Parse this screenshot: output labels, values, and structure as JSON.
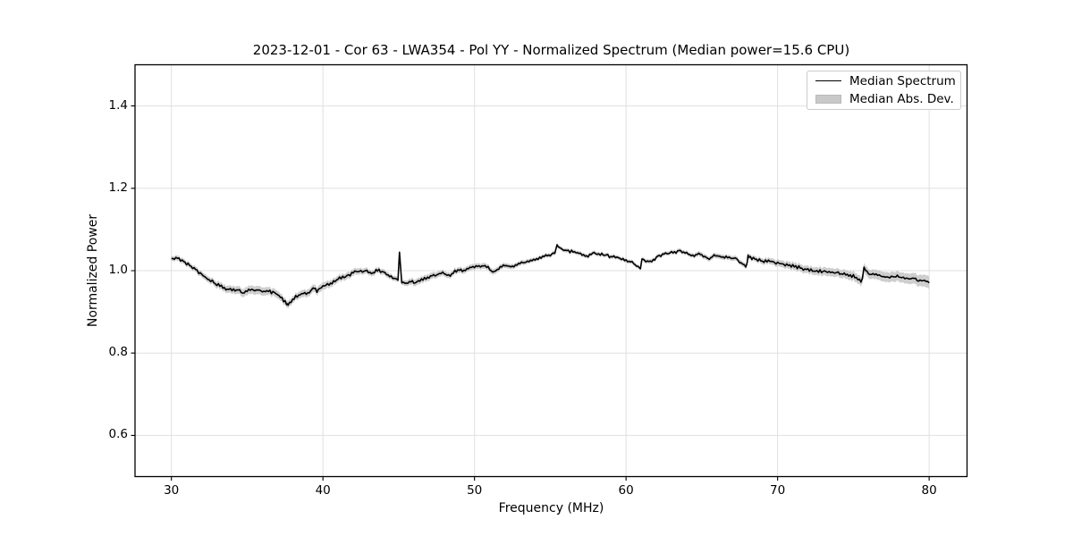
{
  "figure": {
    "title": "2023-12-01 - Cor 63 - LWA354 - Pol YY - Normalized Spectrum (Median power=15.6 CPU)",
    "xlabel": "Frequency (MHz)",
    "ylabel": "Normalized Power"
  },
  "legend": {
    "position": "upper right",
    "items": [
      {
        "label": "Median Spectrum",
        "type": "line",
        "color": "#000000"
      },
      {
        "label": "Median Abs. Dev.",
        "type": "patch",
        "color": "#c9c9c9"
      }
    ]
  },
  "colors": {
    "background": "#ffffff",
    "line": "#000000",
    "band": "#c9c9c9",
    "grid": "#e0e0e0",
    "spine": "#000000"
  },
  "chart_data": {
    "type": "line",
    "title": "2023-12-01 - Cor 63 - LWA354 - Pol YY - Normalized Spectrum (Median power=15.6 CPU)",
    "xlabel": "Frequency (MHz)",
    "ylabel": "Normalized Power",
    "xlim": [
      27.6,
      82.5
    ],
    "ylim": [
      0.5,
      1.5
    ],
    "xticks": [
      30,
      40,
      50,
      60,
      70,
      80
    ],
    "yticks": [
      0.6,
      0.8,
      1.0,
      1.2,
      1.4
    ],
    "xtick_labels": [
      "30",
      "40",
      "50",
      "60",
      "70",
      "80"
    ],
    "ytick_labels": [
      "0.6",
      "0.8",
      "1.0",
      "1.2",
      "1.4"
    ],
    "grid": true,
    "legend_position": "upper right",
    "series": [
      {
        "name": "Median Spectrum",
        "style": "line",
        "color": "#000000",
        "keypoints": [
          [
            30,
            1.03
          ],
          [
            30.2,
            1.027
          ],
          [
            30.4,
            1.033
          ],
          [
            30.6,
            1.026
          ],
          [
            30.8,
            1.022
          ],
          [
            31,
            1.017
          ],
          [
            31.5,
            1.006
          ],
          [
            32,
            0.991
          ],
          [
            32.5,
            0.979
          ],
          [
            33,
            0.967
          ],
          [
            33.5,
            0.958
          ],
          [
            34,
            0.954
          ],
          [
            34.4,
            0.953
          ],
          [
            34.7,
            0.946
          ],
          [
            35,
            0.953
          ],
          [
            35.5,
            0.952
          ],
          [
            36,
            0.952
          ],
          [
            36.4,
            0.95
          ],
          [
            36.8,
            0.946
          ],
          [
            37.1,
            0.94
          ],
          [
            37.4,
            0.928
          ],
          [
            37.65,
            0.916
          ],
          [
            37.9,
            0.925
          ],
          [
            38.2,
            0.937
          ],
          [
            38.6,
            0.942
          ],
          [
            39,
            0.945
          ],
          [
            39.35,
            0.958
          ],
          [
            39.6,
            0.951
          ],
          [
            40,
            0.962
          ],
          [
            40.5,
            0.969
          ],
          [
            41,
            0.98
          ],
          [
            41.5,
            0.986
          ],
          [
            42,
            0.995
          ],
          [
            42.4,
            0.999
          ],
          [
            42.8,
            1.0
          ],
          [
            43.2,
            0.995
          ],
          [
            43.6,
            1.0
          ],
          [
            44,
            0.998
          ],
          [
            44.3,
            0.989
          ],
          [
            44.7,
            0.981
          ],
          [
            44.95,
            0.978
          ],
          [
            45.05,
            1.045
          ],
          [
            45.2,
            0.971
          ],
          [
            45.5,
            0.97
          ],
          [
            45.8,
            0.975
          ],
          [
            46.1,
            0.971
          ],
          [
            46.5,
            0.98
          ],
          [
            47,
            0.984
          ],
          [
            47.5,
            0.99
          ],
          [
            48,
            0.994
          ],
          [
            48.3,
            0.987
          ],
          [
            48.7,
            0.997
          ],
          [
            49,
            1.0
          ],
          [
            49.5,
            1.004
          ],
          [
            50,
            1.008
          ],
          [
            50.4,
            1.011
          ],
          [
            50.8,
            1.01
          ],
          [
            51.2,
            0.996
          ],
          [
            51.6,
            1.007
          ],
          [
            52,
            1.011
          ],
          [
            52.5,
            1.012
          ],
          [
            53,
            1.017
          ],
          [
            53.5,
            1.022
          ],
          [
            54,
            1.028
          ],
          [
            54.5,
            1.034
          ],
          [
            55,
            1.04
          ],
          [
            55.3,
            1.043
          ],
          [
            55.45,
            1.062
          ],
          [
            55.7,
            1.054
          ],
          [
            56,
            1.05
          ],
          [
            56.4,
            1.046
          ],
          [
            56.8,
            1.042
          ],
          [
            57.2,
            1.04
          ],
          [
            57.5,
            1.036
          ],
          [
            57.9,
            1.043
          ],
          [
            58.3,
            1.04
          ],
          [
            58.7,
            1.037
          ],
          [
            59,
            1.033
          ],
          [
            59.5,
            1.031
          ],
          [
            60,
            1.024
          ],
          [
            60.5,
            1.017
          ],
          [
            60.95,
            1.004
          ],
          [
            61.05,
            1.028
          ],
          [
            61.4,
            1.022
          ],
          [
            61.7,
            1.021
          ],
          [
            62,
            1.033
          ],
          [
            62.5,
            1.04
          ],
          [
            63,
            1.043
          ],
          [
            63.5,
            1.048
          ],
          [
            64,
            1.042
          ],
          [
            64.5,
            1.038
          ],
          [
            65,
            1.04
          ],
          [
            65.5,
            1.027
          ],
          [
            65.9,
            1.038
          ],
          [
            66.3,
            1.034
          ],
          [
            66.8,
            1.032
          ],
          [
            67.3,
            1.028
          ],
          [
            67.7,
            1.018
          ],
          [
            67.95,
            1.01
          ],
          [
            68.05,
            1.035
          ],
          [
            68.5,
            1.028
          ],
          [
            69,
            1.024
          ],
          [
            69.5,
            1.022
          ],
          [
            70,
            1.019
          ],
          [
            70.5,
            1.015
          ],
          [
            71,
            1.011
          ],
          [
            71.5,
            1.007
          ],
          [
            72,
            1.002
          ],
          [
            72.5,
            0.999
          ],
          [
            73,
            0.999
          ],
          [
            73.5,
            0.996
          ],
          [
            74,
            0.994
          ],
          [
            74.5,
            0.991
          ],
          [
            75,
            0.987
          ],
          [
            75.55,
            0.975
          ],
          [
            75.7,
            1.005
          ],
          [
            76,
            0.992
          ],
          [
            76.5,
            0.991
          ],
          [
            77,
            0.986
          ],
          [
            77.5,
            0.984
          ],
          [
            78,
            0.986
          ],
          [
            78.5,
            0.981
          ],
          [
            79,
            0.98
          ],
          [
            79.3,
            0.976
          ],
          [
            79.6,
            0.977
          ],
          [
            80,
            0.971
          ]
        ]
      },
      {
        "name": "Median Abs. Dev.",
        "style": "band",
        "color": "#c9c9c9",
        "halfwidth_keypoints": [
          [
            30,
            0.006
          ],
          [
            32,
            0.007
          ],
          [
            34,
            0.009
          ],
          [
            35,
            0.01
          ],
          [
            36,
            0.01
          ],
          [
            37,
            0.009
          ],
          [
            38,
            0.008
          ],
          [
            39,
            0.009
          ],
          [
            40,
            0.009
          ],
          [
            41,
            0.008
          ],
          [
            42,
            0.008
          ],
          [
            43,
            0.007
          ],
          [
            44,
            0.007
          ],
          [
            45,
            0.006
          ],
          [
            46,
            0.008
          ],
          [
            47,
            0.008
          ],
          [
            48,
            0.007
          ],
          [
            49,
            0.007
          ],
          [
            50,
            0.007
          ],
          [
            51,
            0.007
          ],
          [
            52,
            0.006
          ],
          [
            53,
            0.006
          ],
          [
            54,
            0.005
          ],
          [
            55,
            0.005
          ],
          [
            56,
            0.005
          ],
          [
            57,
            0.005
          ],
          [
            58,
            0.005
          ],
          [
            59,
            0.005
          ],
          [
            60,
            0.005
          ],
          [
            61,
            0.005
          ],
          [
            62,
            0.005
          ],
          [
            63,
            0.005
          ],
          [
            64,
            0.005
          ],
          [
            65,
            0.006
          ],
          [
            66,
            0.006
          ],
          [
            67,
            0.006
          ],
          [
            68,
            0.006
          ],
          [
            69,
            0.007
          ],
          [
            70,
            0.008
          ],
          [
            71,
            0.009
          ],
          [
            72,
            0.009
          ],
          [
            73,
            0.01
          ],
          [
            74,
            0.01
          ],
          [
            75,
            0.011
          ],
          [
            76,
            0.011
          ],
          [
            77,
            0.012
          ],
          [
            78,
            0.012
          ],
          [
            79,
            0.013
          ],
          [
            80,
            0.015
          ]
        ]
      }
    ],
    "noise": {
      "amplitude": 0.0028,
      "seed": 42,
      "step_mhz": 0.1,
      "sharp_points": [
        45.05
      ]
    }
  }
}
